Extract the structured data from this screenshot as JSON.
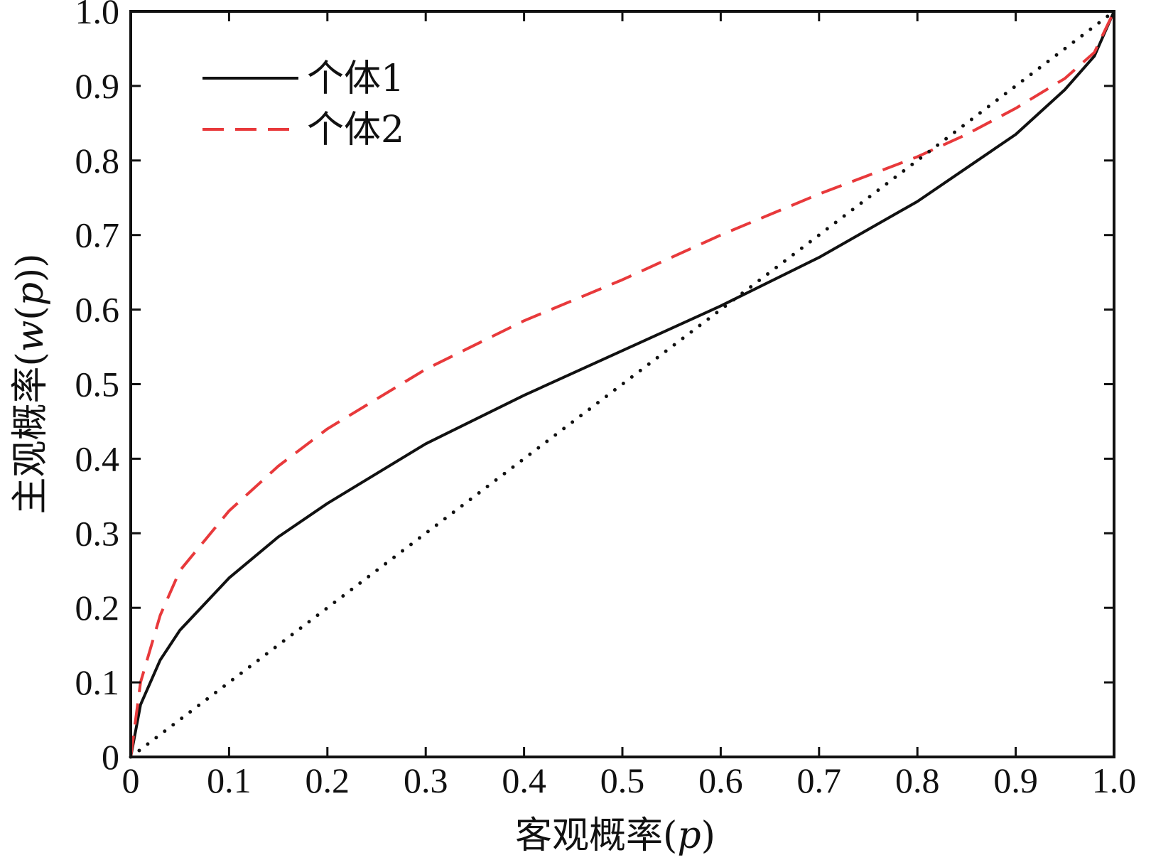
{
  "chart_data": {
    "type": "line",
    "xlabel": "客观概率(p)",
    "ylabel": "主观概率(w(p))",
    "xlim": [
      0,
      1
    ],
    "ylim": [
      0,
      1
    ],
    "x_ticks": [
      "0",
      "0.1",
      "0.2",
      "0.3",
      "0.4",
      "0.5",
      "0.6",
      "0.7",
      "0.8",
      "0.9",
      "1.0"
    ],
    "y_ticks": [
      "0",
      "0.1",
      "0.2",
      "0.3",
      "0.4",
      "0.5",
      "0.6",
      "0.7",
      "0.8",
      "0.9",
      "1.0"
    ],
    "grid": false,
    "legend_position": "top-left",
    "series": [
      {
        "name": "个体1",
        "style": "solid",
        "color": "#111111",
        "x": [
          0,
          0.01,
          0.03,
          0.05,
          0.1,
          0.15,
          0.2,
          0.3,
          0.4,
          0.5,
          0.6,
          0.7,
          0.8,
          0.85,
          0.9,
          0.95,
          0.98,
          1.0
        ],
        "y": [
          0,
          0.07,
          0.13,
          0.17,
          0.24,
          0.295,
          0.34,
          0.42,
          0.485,
          0.545,
          0.605,
          0.67,
          0.745,
          0.79,
          0.835,
          0.895,
          0.94,
          1.0
        ]
      },
      {
        "name": "个体2",
        "style": "dashed",
        "color": "#e8393b",
        "x": [
          0,
          0.01,
          0.03,
          0.05,
          0.1,
          0.15,
          0.2,
          0.3,
          0.4,
          0.5,
          0.6,
          0.7,
          0.8,
          0.85,
          0.9,
          0.95,
          0.98,
          1.0
        ],
        "y": [
          0,
          0.1,
          0.19,
          0.25,
          0.33,
          0.39,
          0.44,
          0.52,
          0.585,
          0.64,
          0.7,
          0.755,
          0.805,
          0.835,
          0.87,
          0.91,
          0.945,
          1.0
        ]
      },
      {
        "style": "dotted",
        "color": "#111111",
        "x": [
          0,
          1
        ],
        "y": [
          0,
          1
        ]
      }
    ]
  }
}
